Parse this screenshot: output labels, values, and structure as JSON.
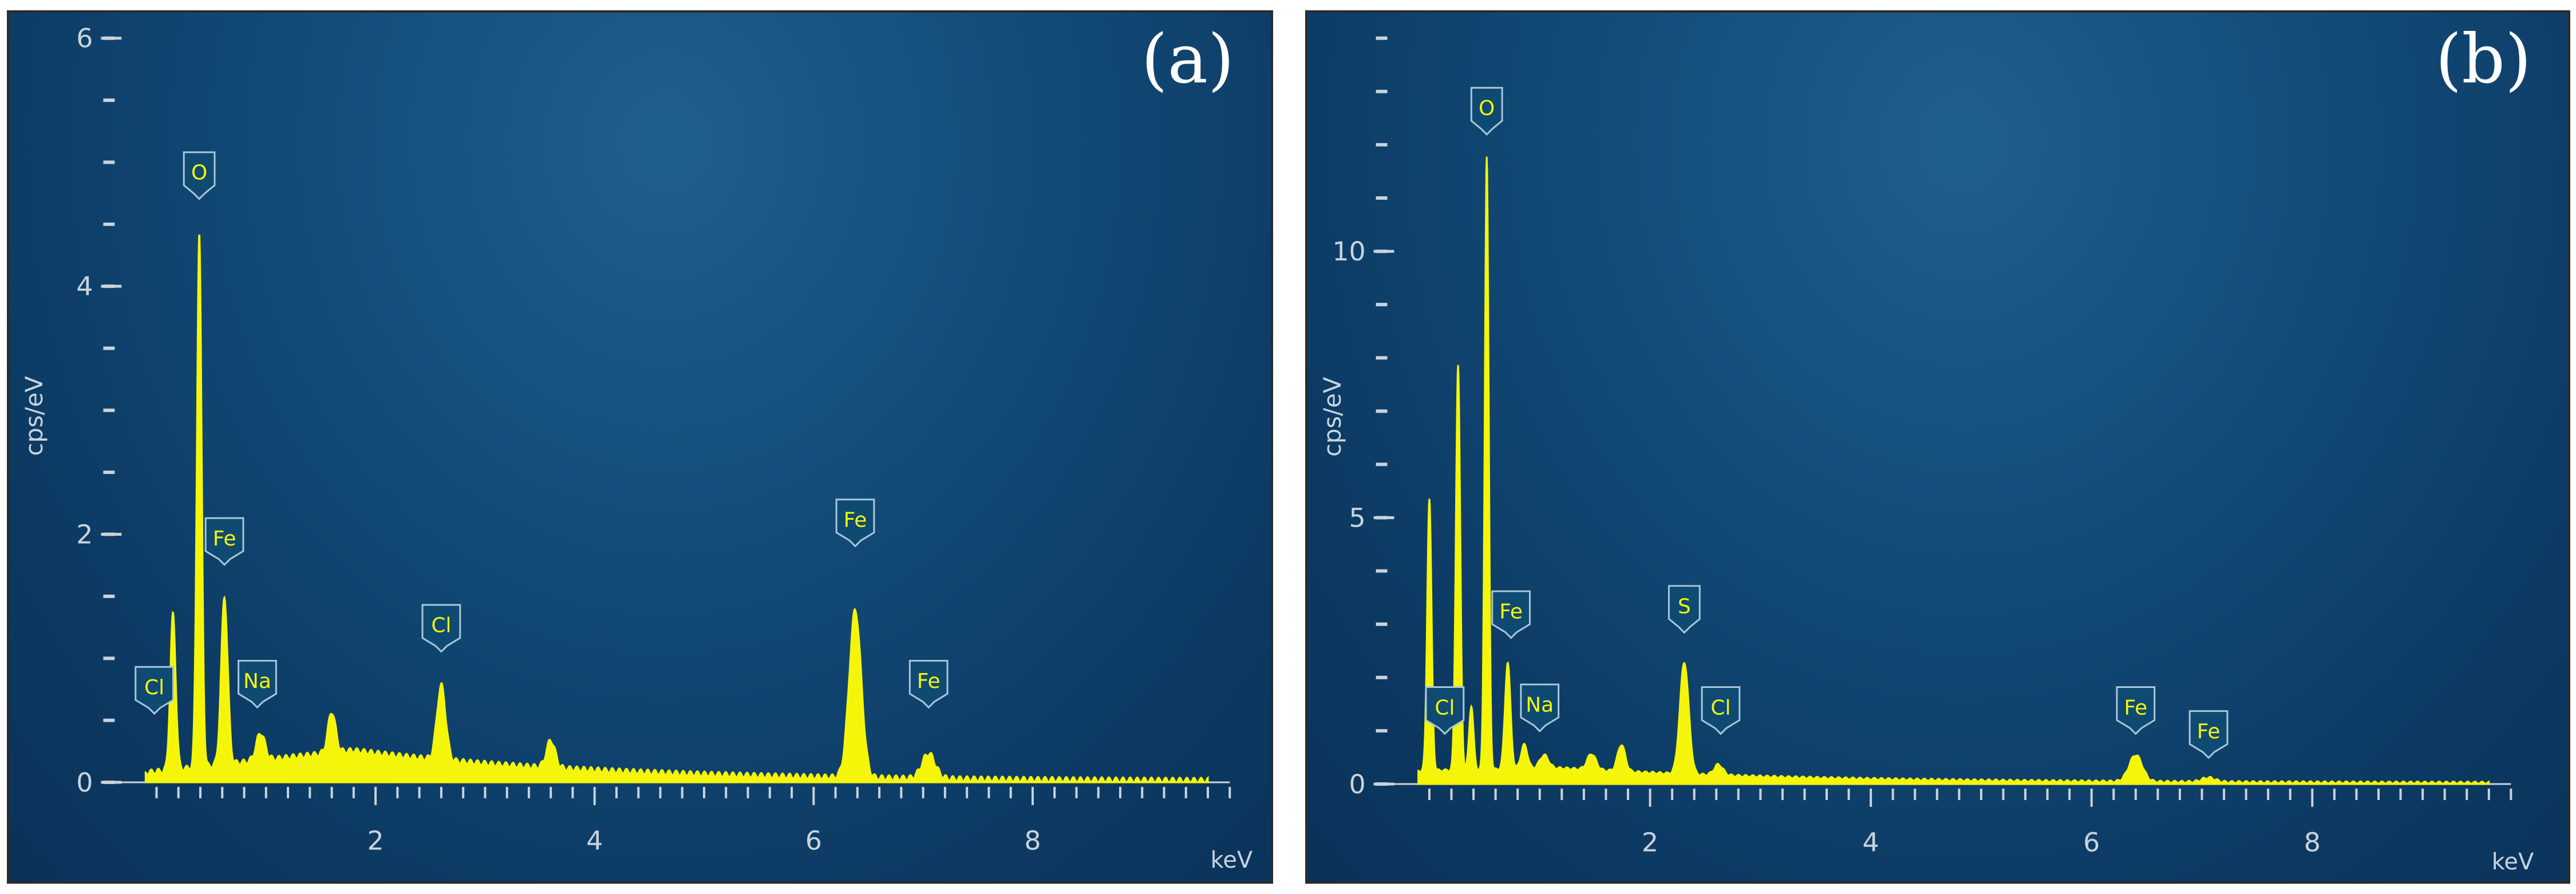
{
  "chart_data": [
    {
      "type": "line",
      "panel_label": "(a)",
      "xlabel": "keV",
      "ylabel": "cps/eV",
      "xlim": [
        -0.2,
        9.8
      ],
      "ylim": [
        0,
        6
      ],
      "x_ticks": [
        2,
        4,
        6,
        8
      ],
      "y_ticks": [
        0,
        2,
        4,
        6
      ],
      "grid": false,
      "series_color": "#f5f50a",
      "peaks": [
        {
          "x": 0.15,
          "y": 1.25,
          "w": 0.025
        },
        {
          "x": 0.39,
          "y": 4.3,
          "w": 0.022
        },
        {
          "x": 0.62,
          "y": 1.35,
          "w": 0.03
        },
        {
          "x": 0.95,
          "y": 0.22,
          "w": 0.04
        },
        {
          "x": 1.6,
          "y": 0.33,
          "w": 0.035
        },
        {
          "x": 2.6,
          "y": 0.6,
          "w": 0.04
        },
        {
          "x": 3.6,
          "y": 0.22,
          "w": 0.04
        },
        {
          "x": 6.38,
          "y": 1.35,
          "w": 0.055
        },
        {
          "x": 7.05,
          "y": 0.2,
          "w": 0.06
        }
      ],
      "background": {
        "start": 0.08,
        "max": 0.26,
        "at": 1.8,
        "end": 0.01,
        "end_x": 9.6
      },
      "annotations": [
        {
          "label": "Cl",
          "x": -0.02,
          "y": 0.6
        },
        {
          "label": "O",
          "x": 0.39,
          "y": 4.75
        },
        {
          "label": "Fe",
          "x": 0.62,
          "y": 1.8
        },
        {
          "label": "Na",
          "x": 0.92,
          "y": 0.65
        },
        {
          "label": "Cl",
          "x": 2.6,
          "y": 1.1
        },
        {
          "label": "Fe",
          "x": 6.38,
          "y": 1.95
        },
        {
          "label": "Fe",
          "x": 7.05,
          "y": 0.65
        }
      ]
    },
    {
      "type": "line",
      "panel_label": "(b)",
      "xlabel": "keV",
      "ylabel": "cps/eV",
      "xlim": [
        -0.2,
        9.8
      ],
      "ylim": [
        0,
        14
      ],
      "x_ticks": [
        2,
        4,
        6,
        8
      ],
      "y_ticks": [
        0,
        5,
        10
      ],
      "grid": false,
      "series_color": "#f5f50a",
      "peaks": [
        {
          "x": 0.0,
          "y": 5.1,
          "w": 0.02
        },
        {
          "x": 0.26,
          "y": 7.6,
          "w": 0.02
        },
        {
          "x": 0.38,
          "y": 1.2,
          "w": 0.02
        },
        {
          "x": 0.52,
          "y": 11.5,
          "w": 0.018
        },
        {
          "x": 0.71,
          "y": 2.0,
          "w": 0.025
        },
        {
          "x": 0.86,
          "y": 0.45,
          "w": 0.03
        },
        {
          "x": 1.04,
          "y": 0.25,
          "w": 0.04
        },
        {
          "x": 1.47,
          "y": 0.3,
          "w": 0.04
        },
        {
          "x": 1.74,
          "y": 0.5,
          "w": 0.035
        },
        {
          "x": 2.31,
          "y": 2.1,
          "w": 0.04
        },
        {
          "x": 2.62,
          "y": 0.2,
          "w": 0.04
        },
        {
          "x": 6.4,
          "y": 0.5,
          "w": 0.06
        },
        {
          "x": 7.06,
          "y": 0.08,
          "w": 0.06
        }
      ],
      "background": {
        "start": 0.25,
        "max": 0.3,
        "at": 1.2,
        "end": 0.02,
        "end_x": 9.6
      },
      "annotations": [
        {
          "label": "Cl",
          "x": 0.14,
          "y": 1.05
        },
        {
          "label": "O",
          "x": 0.52,
          "y": 12.3
        },
        {
          "label": "Fe",
          "x": 0.74,
          "y": 2.85
        },
        {
          "label": "Na",
          "x": 1.0,
          "y": 1.1
        },
        {
          "label": "S",
          "x": 2.31,
          "y": 2.95
        },
        {
          "label": "Cl",
          "x": 2.64,
          "y": 1.05
        },
        {
          "label": "Fe",
          "x": 6.4,
          "y": 1.05
        },
        {
          "label": "Fe",
          "x": 7.06,
          "y": 0.6
        }
      ]
    }
  ]
}
